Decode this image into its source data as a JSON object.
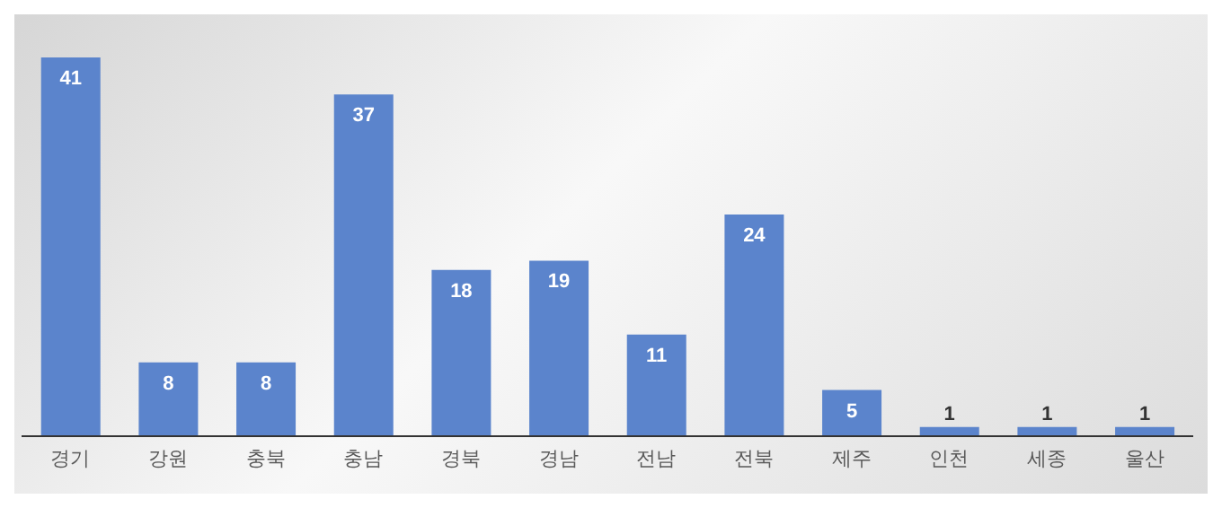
{
  "chart_data": {
    "type": "bar",
    "categories": [
      "경기",
      "강원",
      "충북",
      "충남",
      "경북",
      "경남",
      "전남",
      "전북",
      "제주",
      "인천",
      "세종",
      "울산"
    ],
    "values": [
      41,
      8,
      8,
      37,
      18,
      19,
      11,
      24,
      5,
      1,
      1,
      1
    ],
    "color": "#5b84cc",
    "data_labels": true,
    "tick_labels": "x"
  }
}
